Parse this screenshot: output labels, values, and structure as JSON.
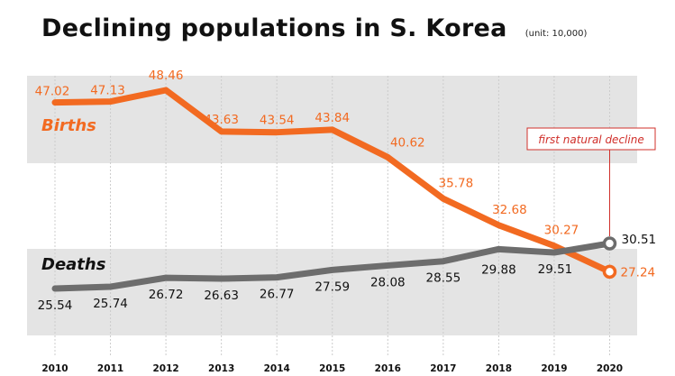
{
  "title": "Declining populations in S. Korea",
  "unit": "(unit: 10,000)",
  "colors": {
    "births": "#f26a21",
    "deaths": "#6d6d6d",
    "band": "#e4e4e4",
    "annotation": "#d0302b"
  },
  "chart_data": {
    "type": "line",
    "title": "Declining populations in S. Korea",
    "subtitle": "(unit: 10,000)",
    "categories": [
      "2010",
      "2011",
      "2012",
      "2013",
      "2014",
      "2015",
      "2016",
      "2017",
      "2018",
      "2019",
      "2020"
    ],
    "series": [
      {
        "name": "Births",
        "values": [
          47.02,
          47.13,
          48.46,
          43.63,
          43.54,
          43.84,
          40.62,
          35.78,
          32.68,
          30.27,
          27.24
        ]
      },
      {
        "name": "Deaths",
        "values": [
          25.54,
          25.74,
          26.72,
          26.63,
          26.77,
          27.59,
          28.08,
          28.55,
          29.88,
          29.51,
          30.51
        ]
      }
    ],
    "labels": {
      "Births": [
        "47.02",
        "47.13",
        "48.46",
        "43.63",
        "43.54",
        "43.84",
        "40.62",
        "35.78",
        "32.68",
        "30.27",
        "27.24"
      ],
      "Deaths": [
        "25.54",
        "25.74",
        "26.72",
        "26.63",
        "26.77",
        "27.59",
        "28.08",
        "28.55",
        "29.88",
        "29.51",
        "30.51"
      ]
    },
    "annotation": "first natural decline",
    "xlabel": "",
    "ylabel": ""
  }
}
